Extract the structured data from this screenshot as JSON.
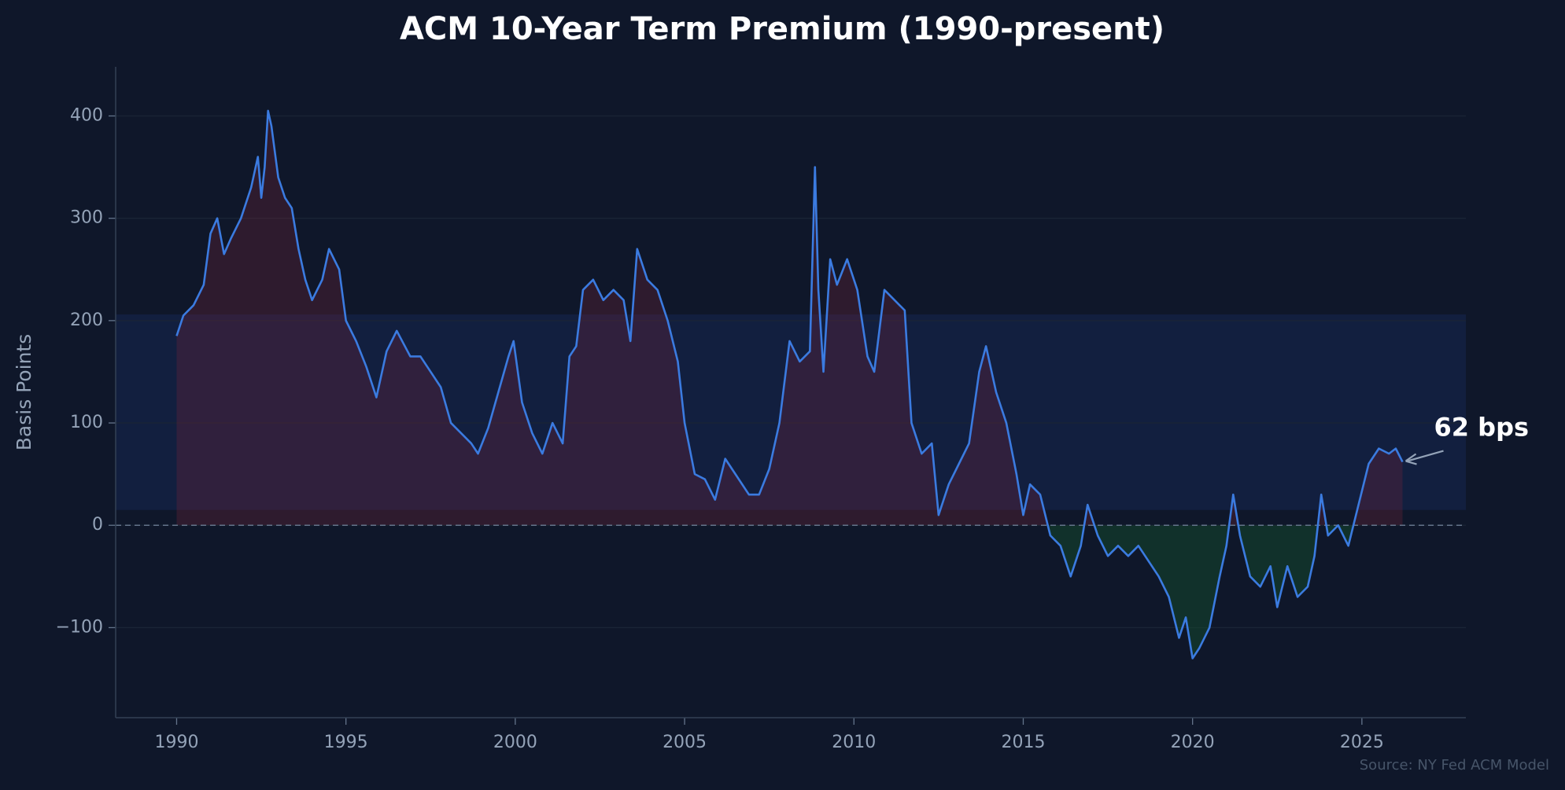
{
  "chart_data": {
    "type": "line",
    "title": "ACM 10-Year Term Premium (1990-present)",
    "y_label": "Basis Points",
    "source": "Source: NY Fed ACM Model",
    "xlim": [
      1988.2,
      2028.07
    ],
    "ylim": [
      -188,
      448
    ],
    "xticks": [
      1990,
      1995,
      2000,
      2005,
      2010,
      2015,
      2020,
      2025
    ],
    "yticks": [
      {
        "value": -100,
        "label": "−100"
      },
      0,
      100,
      200,
      300,
      400
    ],
    "grid": true,
    "band": [
      15,
      206
    ],
    "reference_line": 0,
    "annotation": {
      "text": "62 bps",
      "x": 2026.2,
      "y": 62
    },
    "series": [
      {
        "name": "ACM 10-Year Term Premium",
        "color": "#3b7be0",
        "x": [
          1990.0,
          1990.2,
          1990.5,
          1990.8,
          1991.0,
          1991.2,
          1991.4,
          1991.6,
          1991.9,
          1992.2,
          1992.4,
          1992.5,
          1992.6,
          1992.7,
          1992.8,
          1993.0,
          1993.2,
          1993.4,
          1993.6,
          1993.8,
          1994.0,
          1994.3,
          1994.5,
          1994.8,
          1995.0,
          1995.3,
          1995.6,
          1995.9,
          1996.2,
          1996.5,
          1996.9,
          1997.2,
          1997.5,
          1997.8,
          1998.1,
          1998.4,
          1998.7,
          1998.9,
          1999.2,
          1999.5,
          1999.8,
          1999.95,
          2000.2,
          2000.5,
          2000.8,
          2001.1,
          2001.4,
          2001.6,
          2001.8,
          2002.0,
          2002.3,
          2002.6,
          2002.9,
          2003.2,
          2003.4,
          2003.6,
          2003.9,
          2004.2,
          2004.5,
          2004.8,
          2005.0,
          2005.3,
          2005.6,
          2005.9,
          2006.2,
          2006.5,
          2006.9,
          2007.2,
          2007.5,
          2007.8,
          2008.1,
          2008.4,
          2008.7,
          2008.85,
          2008.95,
          2009.1,
          2009.3,
          2009.5,
          2009.8,
          2010.1,
          2010.4,
          2010.6,
          2010.9,
          2011.2,
          2011.5,
          2011.7,
          2012.0,
          2012.3,
          2012.5,
          2012.8,
          2013.1,
          2013.4,
          2013.7,
          2013.9,
          2014.2,
          2014.5,
          2014.8,
          2015.0,
          2015.2,
          2015.5,
          2015.8,
          2016.1,
          2016.4,
          2016.7,
          2016.9,
          2017.2,
          2017.5,
          2017.8,
          2018.1,
          2018.4,
          2018.7,
          2019.0,
          2019.3,
          2019.6,
          2019.8,
          2020.0,
          2020.2,
          2020.5,
          2020.8,
          2021.0,
          2021.2,
          2021.4,
          2021.7,
          2022.0,
          2022.3,
          2022.5,
          2022.8,
          2023.1,
          2023.4,
          2023.6,
          2023.8,
          2024.0,
          2024.3,
          2024.6,
          2024.9,
          2025.2,
          2025.5,
          2025.8,
          2026.0,
          2026.2
        ],
        "values": [
          185,
          205,
          215,
          235,
          285,
          300,
          265,
          280,
          300,
          330,
          360,
          320,
          350,
          405,
          390,
          340,
          320,
          310,
          270,
          240,
          220,
          240,
          270,
          250,
          200,
          180,
          155,
          125,
          170,
          190,
          165,
          165,
          150,
          135,
          100,
          90,
          80,
          70,
          95,
          130,
          165,
          180,
          120,
          90,
          70,
          100,
          80,
          165,
          175,
          230,
          240,
          220,
          230,
          220,
          180,
          270,
          240,
          230,
          200,
          160,
          100,
          50,
          45,
          25,
          65,
          50,
          30,
          30,
          55,
          100,
          180,
          160,
          170,
          350,
          230,
          150,
          260,
          235,
          260,
          230,
          165,
          150,
          230,
          220,
          210,
          100,
          70,
          80,
          10,
          40,
          60,
          80,
          150,
          175,
          130,
          100,
          50,
          10,
          40,
          30,
          -10,
          -20,
          -50,
          -20,
          20,
          -10,
          -30,
          -20,
          -30,
          -20,
          -35,
          -50,
          -70,
          -110,
          -90,
          -130,
          -120,
          -100,
          -50,
          -20,
          30,
          -10,
          -50,
          -60,
          -40,
          -80,
          -40,
          -70,
          -60,
          -30,
          30,
          -10,
          0,
          -20,
          20,
          60,
          75,
          70,
          75,
          62
        ]
      }
    ]
  }
}
